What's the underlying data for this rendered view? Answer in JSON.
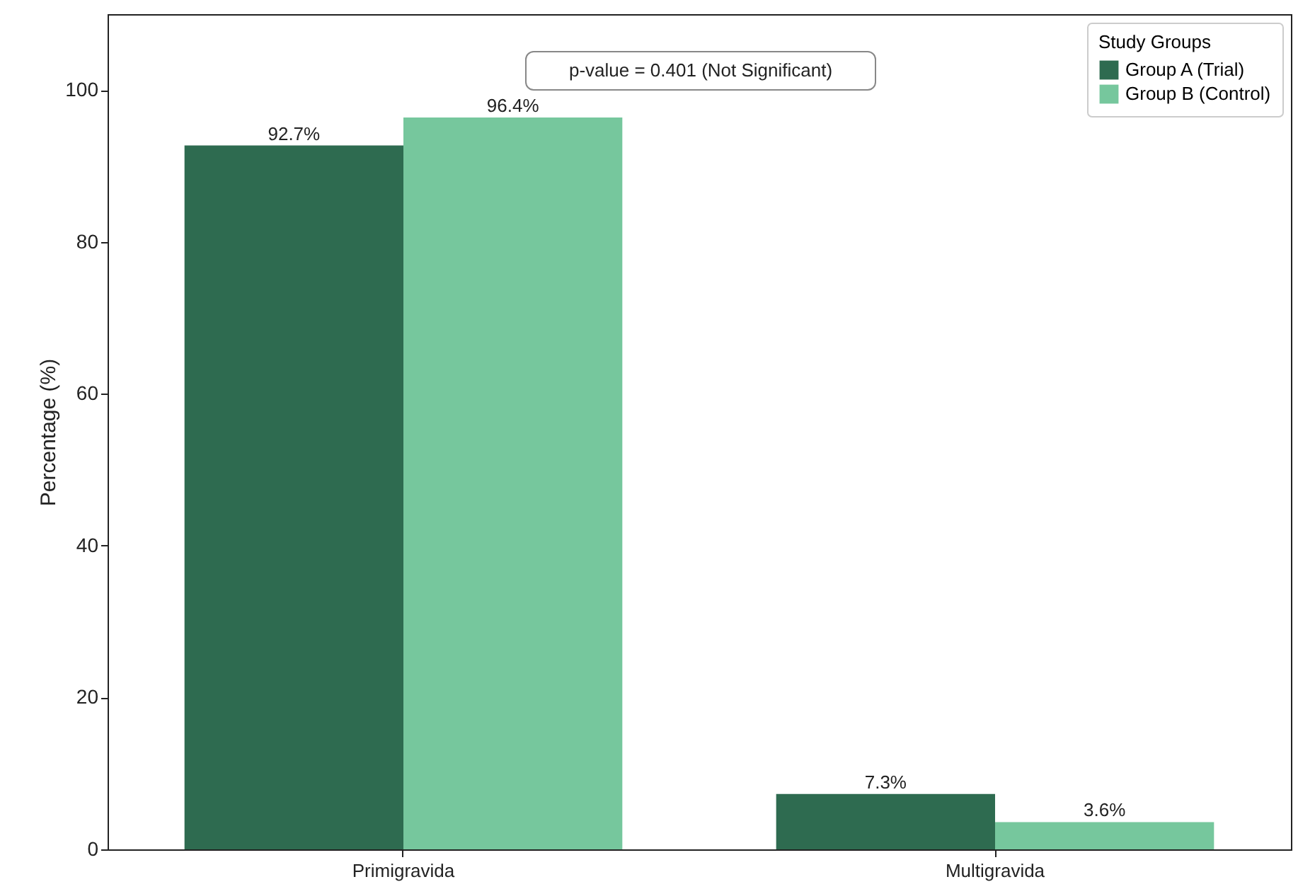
{
  "chart_data": {
    "type": "bar",
    "ylabel": "Percentage (%)",
    "legend_title": "Study Groups",
    "legend": "top right",
    "grid": false,
    "categories": [
      "Primigravida",
      "Multigravida"
    ],
    "series": [
      {
        "name": "Group A (Trial)",
        "color": "#2e6b50",
        "values": [
          92.7,
          7.3
        ],
        "value_labels": [
          "92.7%",
          "7.3%"
        ]
      },
      {
        "name": "Group B (Control)",
        "color": "#76c79d",
        "values": [
          96.4,
          3.6
        ],
        "value_labels": [
          "96.4%",
          "3.6%"
        ]
      }
    ],
    "ylim": [
      0,
      110
    ],
    "yticks": [
      0,
      20,
      40,
      60,
      80,
      100
    ],
    "annotations": [
      "p-value = 0.401 (Not Significant)"
    ]
  }
}
